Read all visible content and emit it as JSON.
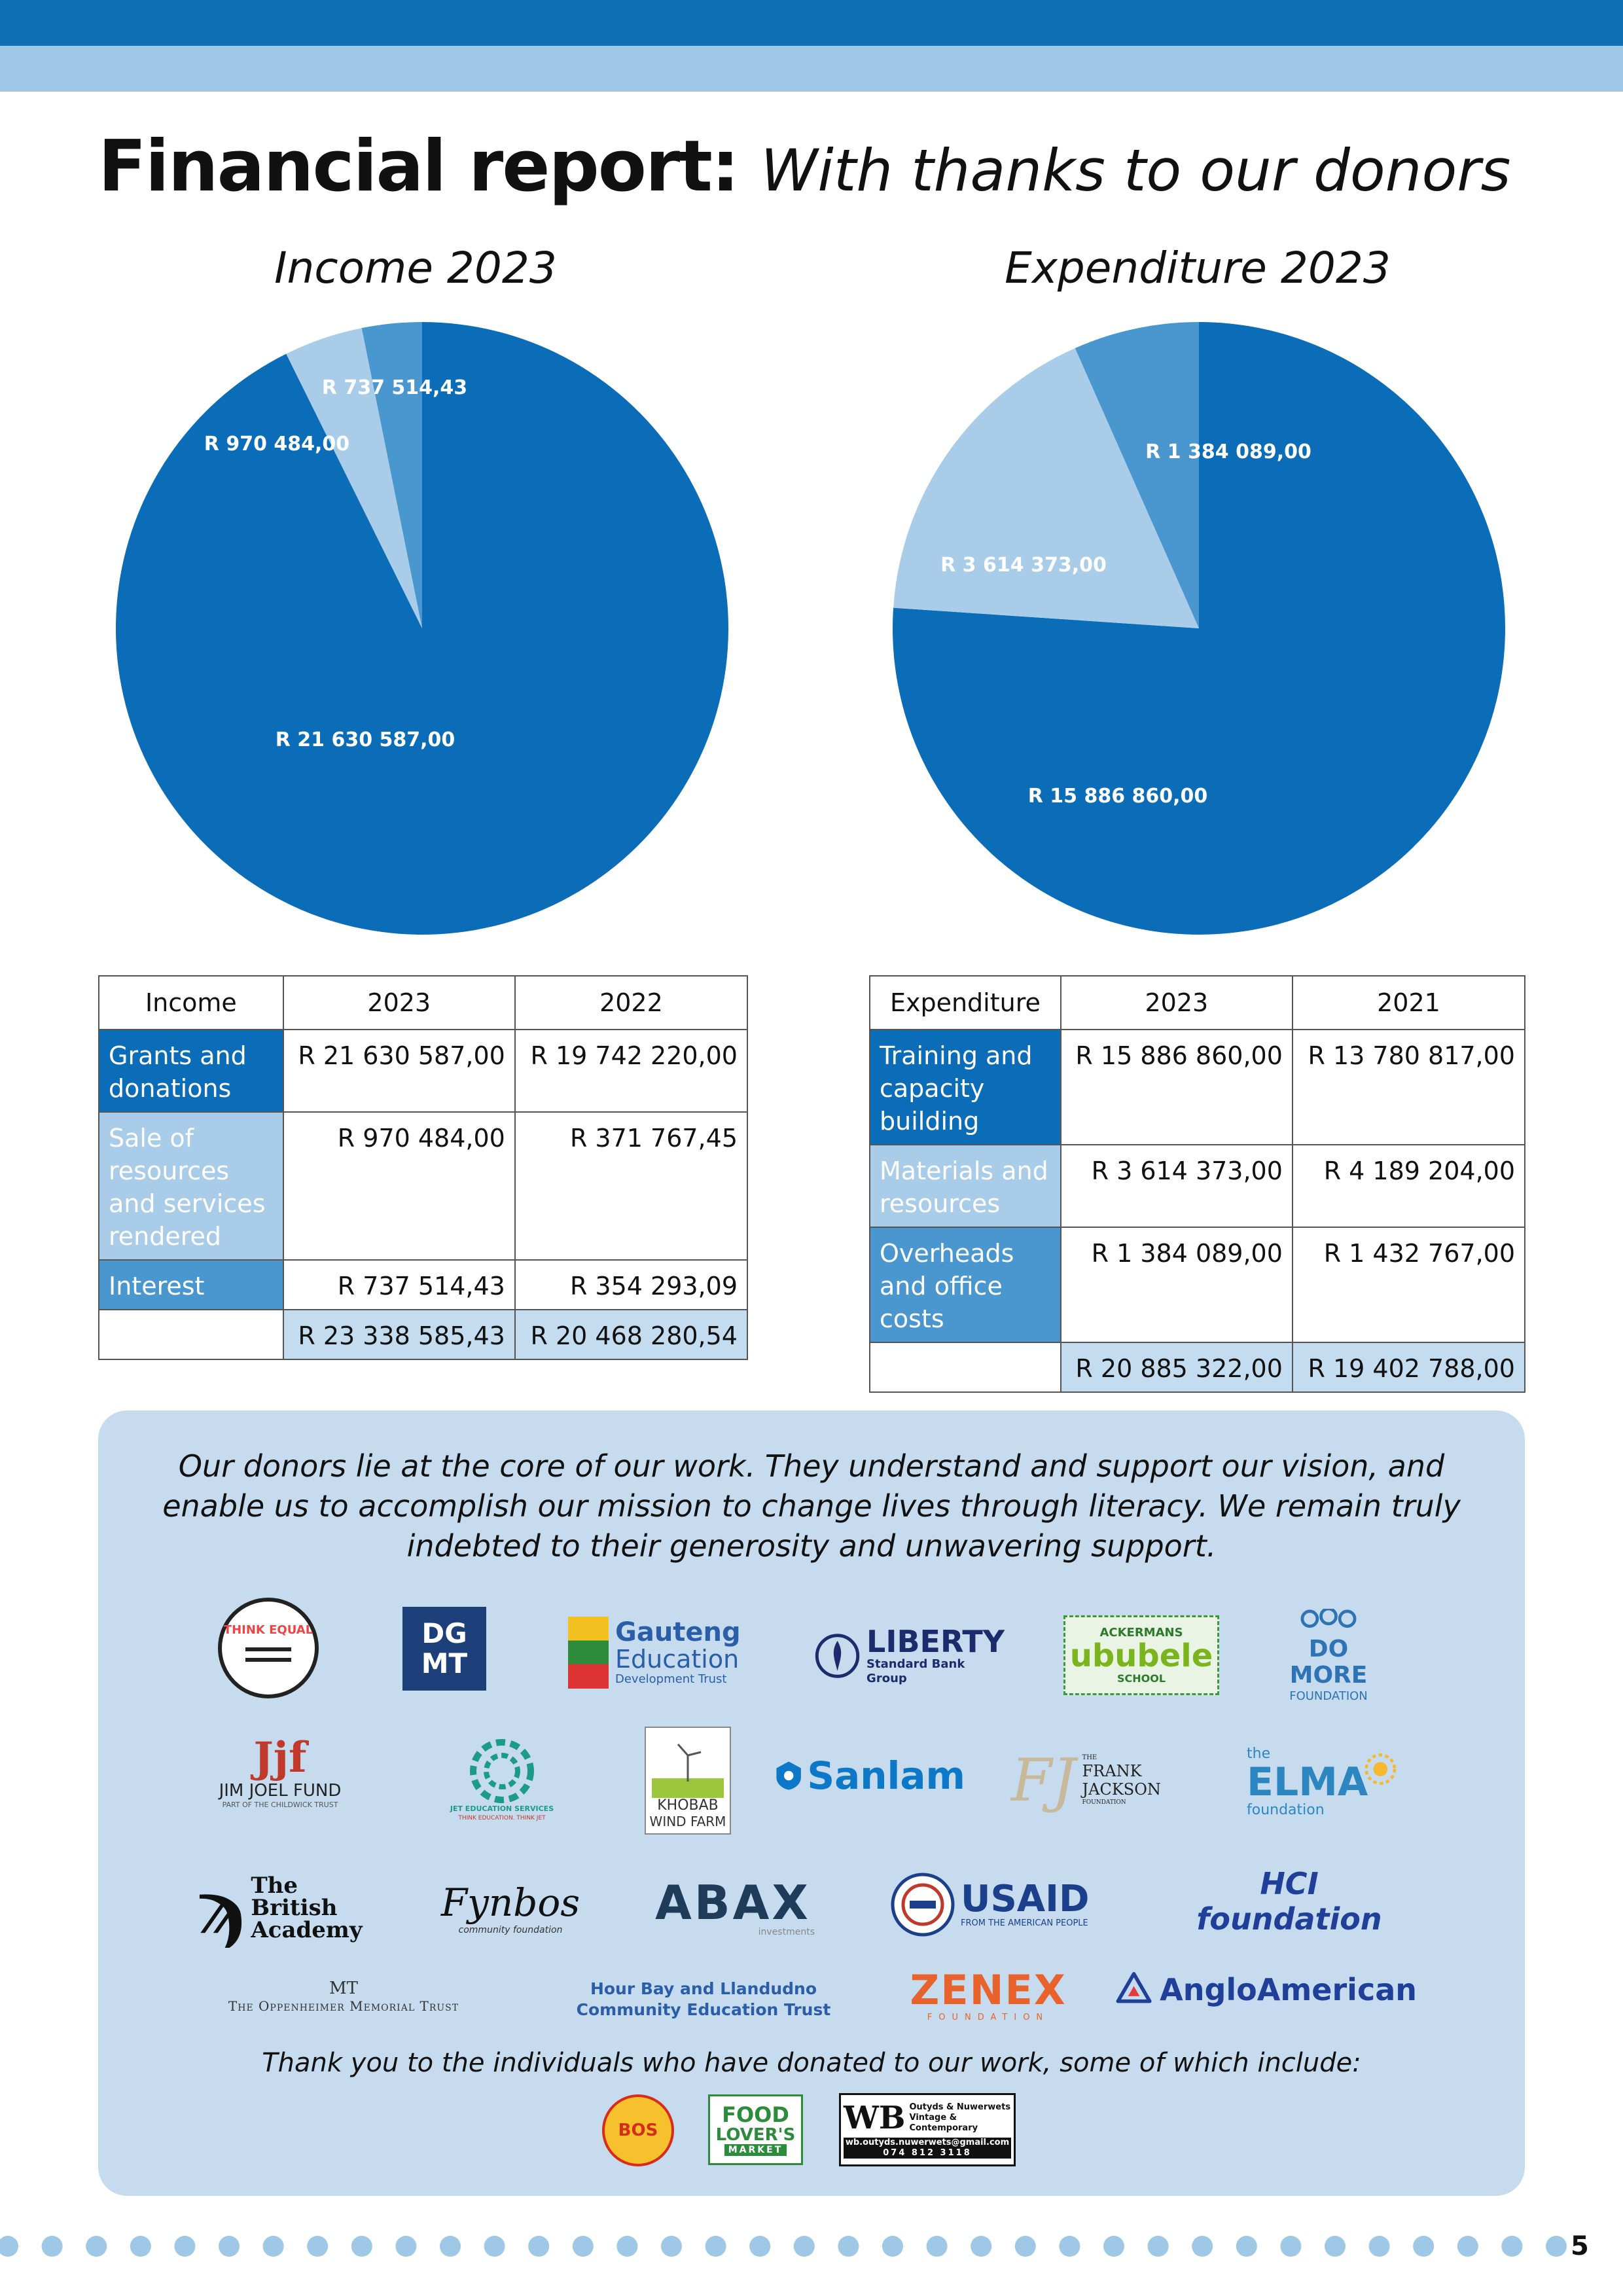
{
  "header": {
    "title_bold": "Financial report:",
    "title_italic": "With thanks to our donors"
  },
  "chart_data": [
    {
      "type": "pie",
      "title": "Income 2023",
      "categories": [
        "Grants and donations",
        "Sale of resources and services rendered",
        "Interest"
      ],
      "values": [
        21630587.0,
        970484.0,
        737514.43
      ],
      "labels": [
        "R 21 630 587,00",
        "R 970 484,00",
        "R 737 514,43"
      ],
      "colors": [
        "#0b6cb8",
        "#a9cde9",
        "#4a97d0"
      ]
    },
    {
      "type": "pie",
      "title": "Expenditure 2023",
      "categories": [
        "Training and capacity building",
        "Materials and resources",
        "Overheads and office costs"
      ],
      "values": [
        15886860.0,
        3614373.0,
        1384089.0
      ],
      "labels": [
        "R 15 886 860,00",
        "R 3 614 373,00",
        "R 1 384 089,00"
      ],
      "colors": [
        "#0b6cb8",
        "#a9cde9",
        "#4a97d0"
      ]
    }
  ],
  "income_table": {
    "headers": [
      "Income",
      "2023",
      "2022"
    ],
    "rows": [
      {
        "label": "Grants and donations",
        "y2023": "R 21 630 587,00",
        "yprev": "R 19 742 220,00"
      },
      {
        "label": "Sale of resources and services rendered",
        "y2023": "R 970 484,00",
        "yprev": "R 371 767,45"
      },
      {
        "label": "Interest",
        "y2023": "R 737 514,43",
        "yprev": "R 354 293,09"
      }
    ],
    "total": {
      "y2023": "R 23 338 585,43",
      "yprev": "R 20 468 280,54"
    }
  },
  "expenditure_table": {
    "headers": [
      "Expenditure",
      "2023",
      "2021"
    ],
    "rows": [
      {
        "label": "Training and capacity building",
        "y2023": "R 15 886 860,00",
        "yprev": "R 13 780 817,00"
      },
      {
        "label": "Materials and resources",
        "y2023": "R 3 614 373,00",
        "yprev": "R 4 189 204,00"
      },
      {
        "label": "Overheads and office costs",
        "y2023": "R 1 384 089,00",
        "yprev": "R 1 432 767,00"
      }
    ],
    "total": {
      "y2023": "R 20 885 322,00",
      "yprev": "R 19 402 788,00"
    }
  },
  "donors": {
    "statement": "Our donors lie at the core of our work. They understand and support our vision, and enable us to accomplish our mission to change lives through literacy. We remain truly indebted to their generosity and unwavering support.",
    "logos": {
      "think_equal": "THINK EQUAL",
      "dgmt_top": "DG",
      "dgmt_bottom": "MT",
      "gauteng_1": "Gauteng",
      "gauteng_2": "Education",
      "gauteng_3": "Development Trust",
      "liberty_1": "LIBERTY",
      "liberty_2": "Standard Bank Group",
      "ackermans_1": "ACKERMANS",
      "ackermans_2": "ububele",
      "ackermans_3": "SCHOOL",
      "domore_1": "DO MORE",
      "domore_2": "FOUNDATION",
      "jjf_mark": "Jjf",
      "jjf_1": "JIM JOEL FUND",
      "jjf_2": "PART OF THE CHILDWICK TRUST",
      "jet": "JET EDUCATION SERVICES",
      "jet_tag": "THINK EDUCATION. THINK JET",
      "khobab_1": "KHOBAB",
      "khobab_2": "WIND FARM",
      "sanlam": "Sanlam",
      "frank_mark": "FJ",
      "frank_1": "THE",
      "frank_2": "FRANK",
      "frank_3": "JACKSON",
      "frank_4": "FOUNDATION",
      "elma_1": "the",
      "elma_2": "ELMA",
      "elma_3": "foundation",
      "british_1": "The",
      "british_2": "British",
      "british_3": "Academy",
      "fynbos": "Fynbos",
      "fynbos_sub": "community foundation",
      "abax": "ABAX",
      "abax_sub": "investments",
      "usaid_1": "USAID",
      "usaid_2": "FROM THE AMERICAN PEOPLE",
      "hci": "HCI foundation",
      "oppenheimer_mark": "MT",
      "oppenheimer": "The Oppenheimer Memorial Trust",
      "hourbay": "Hour Bay and Llandudno Community Education Trust",
      "zenex_1": "ZENEX",
      "zenex_2": "FOUNDATION",
      "anglo": "AngloAmerican"
    },
    "individuals_text": "Thank you to the individuals who have donated to our work, some of which include:",
    "individual_logos": {
      "bos": "BOS",
      "food_1": "FOOD",
      "food_2": "LOVER'S",
      "food_3": "MARKET",
      "wb_mark": "WB",
      "wb_1": "Outyds & Nuwerwets",
      "wb_2": "Vintage & Contemporary",
      "wb_3": "wb.outyds.nuwerwets@gmail.com",
      "wb_4": "074 812 3118"
    }
  },
  "footer": {
    "page_number": "5"
  }
}
